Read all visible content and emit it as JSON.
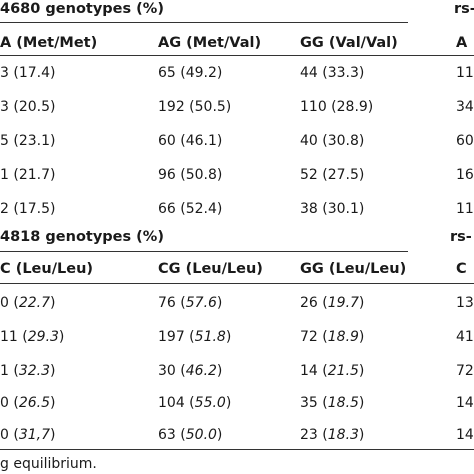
{
  "section1": {
    "title": "4680 genotypes (%)",
    "right_title": "rs-",
    "headers": [
      "A (Met/Met)",
      "AG (Met/Val)",
      "GG (Val/Val)",
      "A"
    ],
    "rows": [
      [
        "3 (17.4)",
        "65 (49.2)",
        "44 (33.3)",
        "11"
      ],
      [
        "3 (20.5)",
        "192 (50.5)",
        "110 (28.9)",
        "34"
      ],
      [
        "5 (23.1)",
        "60 (46.1)",
        "40 (30.8)",
        "60"
      ],
      [
        "1 (21.7)",
        "96 (50.8)",
        "52 (27.5)",
        "16"
      ],
      [
        "2 (17.5)",
        "66 (52.4)",
        "38 (30.1)",
        "11"
      ]
    ]
  },
  "section2": {
    "title": "4818 genotypes (%)",
    "right_title": "rs-",
    "headers": [
      "C (Leu/Leu)",
      "CG (Leu/Leu)",
      "GG (Leu/Leu)",
      "C"
    ],
    "rows": [
      [
        {
          "n": "0",
          "p": "22.7"
        },
        {
          "n": "76",
          "p": "57.6"
        },
        {
          "n": "26",
          "p": "19.7"
        },
        {
          "n": "13"
        }
      ],
      [
        {
          "n": "11",
          "p": "29.3"
        },
        {
          "n": "197",
          "p": "51.8"
        },
        {
          "n": "72",
          "p": "18.9"
        },
        {
          "n": "41"
        }
      ],
      [
        {
          "n": "1",
          "p": "32.3"
        },
        {
          "n": "30",
          "p": "46.2"
        },
        {
          "n": "14",
          "p": "21.5"
        },
        {
          "n": "72"
        }
      ],
      [
        {
          "n": "0",
          "p": "26.5"
        },
        {
          "n": "104",
          "p": "55.0"
        },
        {
          "n": "35",
          "p": "18.5"
        },
        {
          "n": "14"
        }
      ],
      [
        {
          "n": "0",
          "p": "31,7"
        },
        {
          "n": "63",
          "p": "50.0"
        },
        {
          "n": "23",
          "p": "18.3"
        },
        {
          "n": "14"
        }
      ]
    ]
  },
  "footnote": "g equilibrium."
}
